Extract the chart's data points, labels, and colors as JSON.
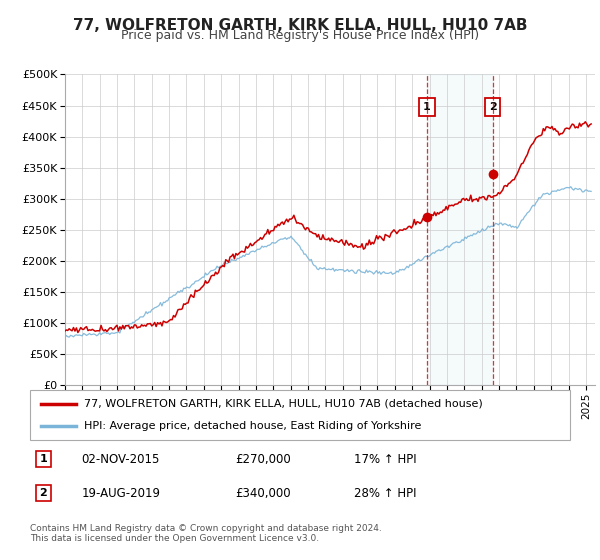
{
  "title": "77, WOLFRETON GARTH, KIRK ELLA, HULL, HU10 7AB",
  "subtitle": "Price paid vs. HM Land Registry's House Price Index (HPI)",
  "ylim": [
    0,
    500000
  ],
  "yticks": [
    0,
    50000,
    100000,
    150000,
    200000,
    250000,
    300000,
    350000,
    400000,
    450000,
    500000
  ],
  "ytick_labels": [
    "£0",
    "£50K",
    "£100K",
    "£150K",
    "£200K",
    "£250K",
    "£300K",
    "£350K",
    "£400K",
    "£450K",
    "£500K"
  ],
  "sale1_date_num": 2015.84,
  "sale1_price": 270000,
  "sale2_date_num": 2019.63,
  "sale2_price": 340000,
  "hpi_color": "#7ab4d8",
  "price_color": "#cc0000",
  "legend_label1": "77, WOLFRETON GARTH, KIRK ELLA, HULL, HU10 7AB (detached house)",
  "legend_label2": "HPI: Average price, detached house, East Riding of Yorkshire",
  "footer": "Contains HM Land Registry data © Crown copyright and database right 2024.\nThis data is licensed under the Open Government Licence v3.0.",
  "background_color": "#ffffff",
  "plot_bg_color": "#ffffff",
  "grid_color": "#cccccc",
  "title_fontsize": 11,
  "subtitle_fontsize": 9
}
